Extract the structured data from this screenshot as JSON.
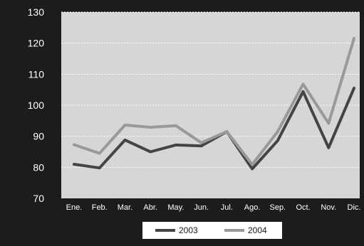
{
  "chart_data": {
    "type": "line",
    "categories": [
      "Ene.",
      "Feb.",
      "Mar.",
      "Abr.",
      "May.",
      "Jun.",
      "Jul.",
      "Ago.",
      "Sep.",
      "Oct.",
      "Nov.",
      "Dic."
    ],
    "series": [
      {
        "name": "2003",
        "values": [
          81.0,
          79.8,
          88.8,
          85.0,
          87.2,
          86.9,
          91.5,
          79.5,
          88.6,
          104.4,
          86.3,
          105.5
        ],
        "color": "#444444"
      },
      {
        "name": "2004",
        "values": [
          87.3,
          84.5,
          93.6,
          92.9,
          93.4,
          87.9,
          91.5,
          80.9,
          91.5,
          106.8,
          94.2,
          121.5
        ],
        "color": "#999999"
      }
    ],
    "yticks": [
      "70",
      "80",
      "90",
      "100",
      "110",
      "120",
      "130"
    ],
    "ylim": [
      70,
      130
    ],
    "grid": true,
    "legend_position": "bottom-center",
    "colors": {
      "background": "#1c1c1c",
      "plot": "#d6d6d6",
      "grid": "#ffffff",
      "text": "#ffffff"
    }
  }
}
